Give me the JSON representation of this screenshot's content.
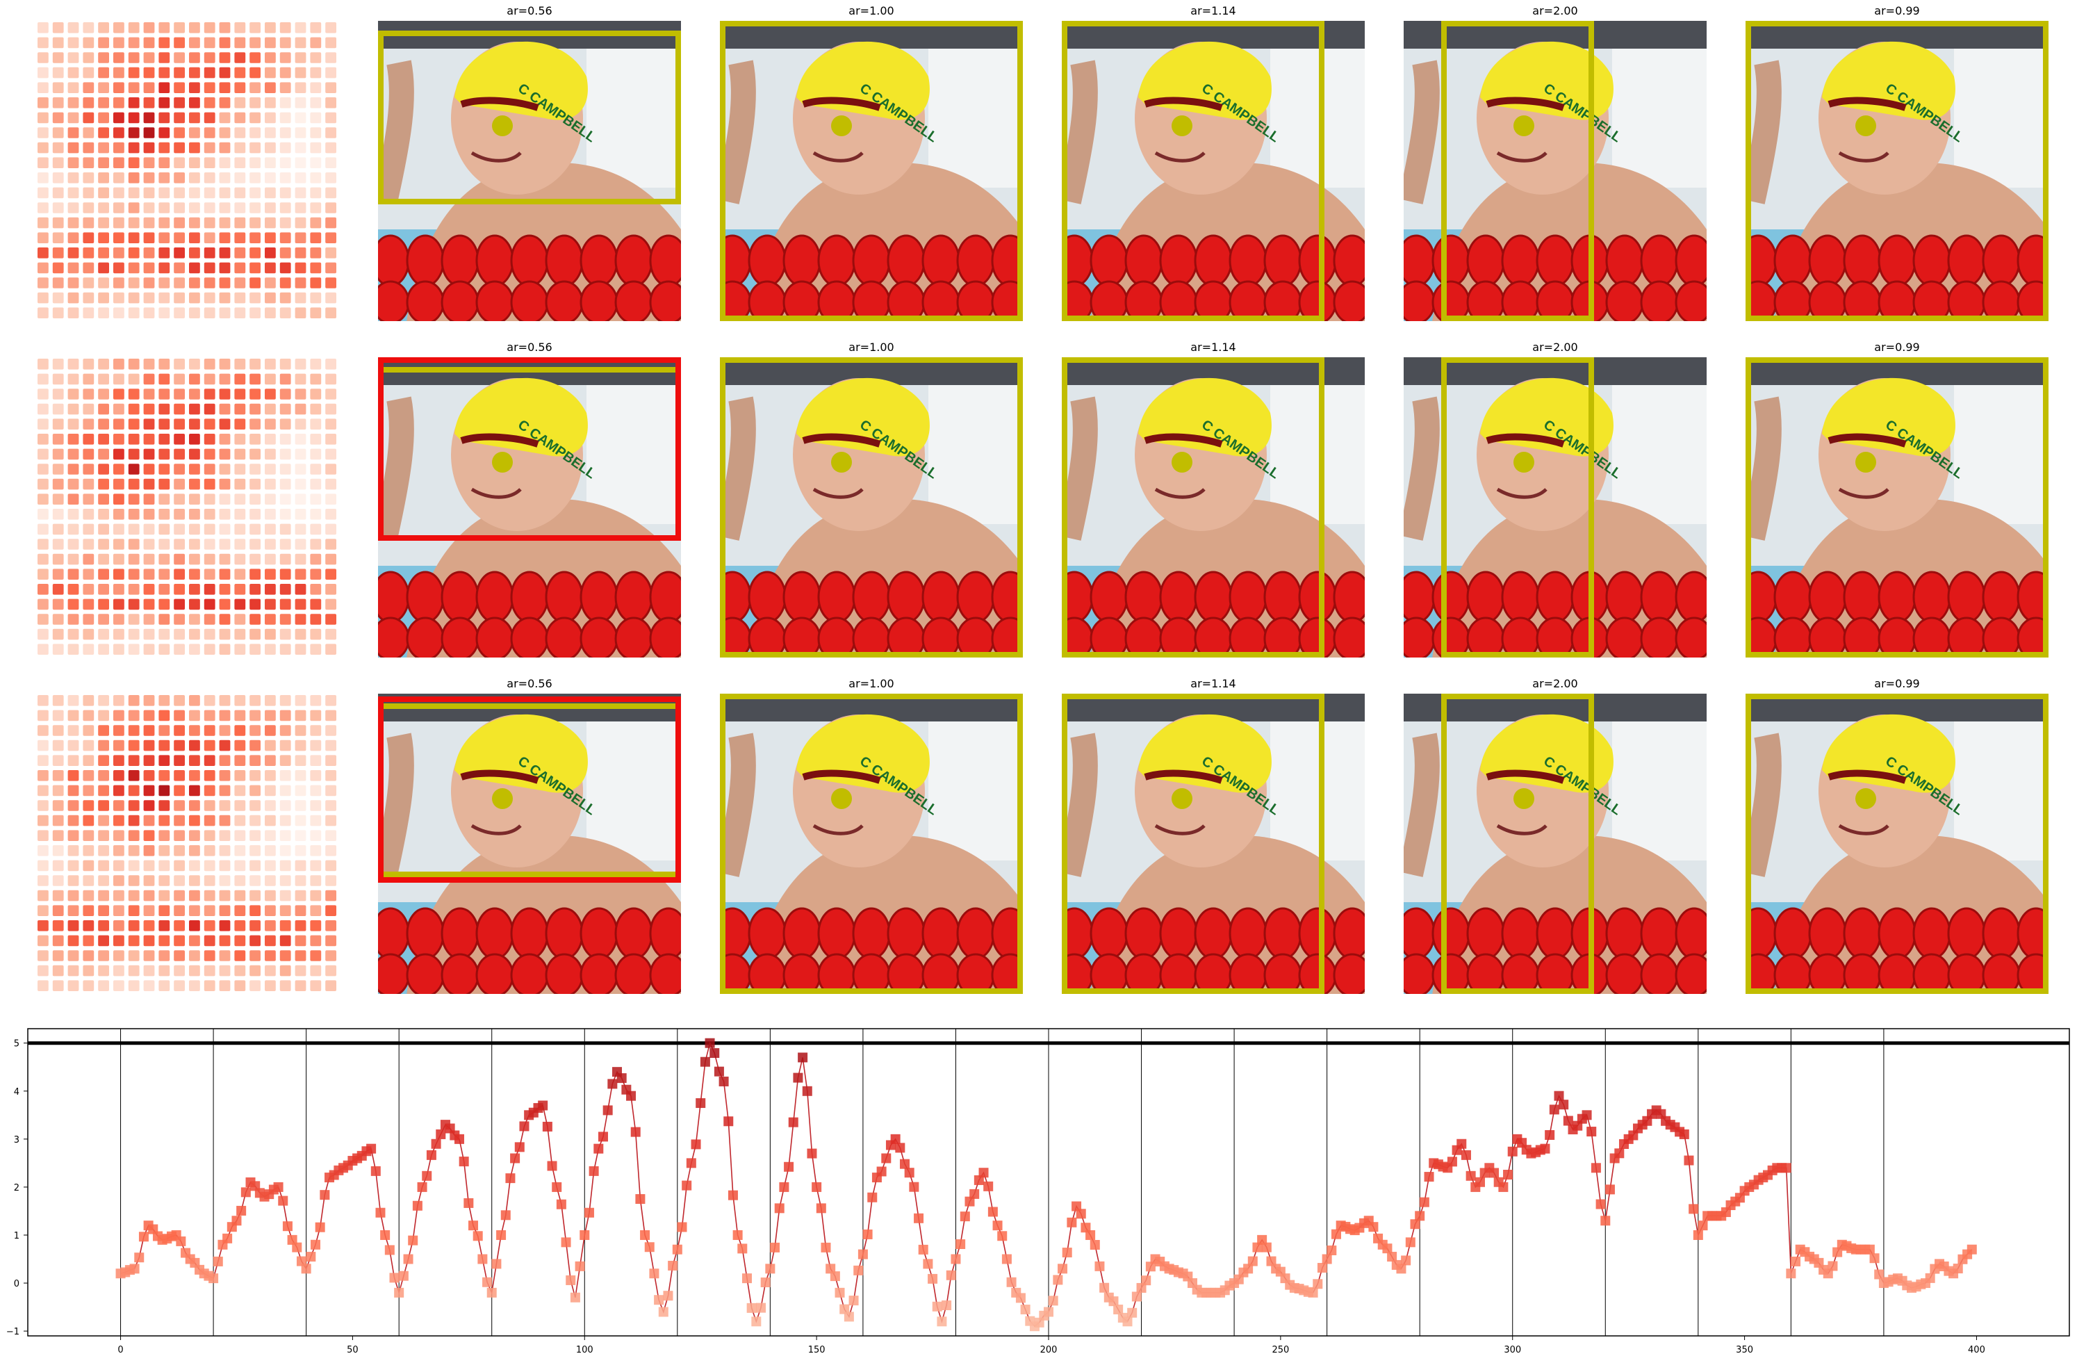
{
  "rows": [
    {
      "panels": [
        {
          "title": "ar=0.56",
          "photo_text": "C CAMPBELL"
        },
        {
          "title": "ar=1.00",
          "photo_text": "C CAMPBELL"
        },
        {
          "title": "ar=1.14",
          "photo_text": "C CAMPBELL"
        },
        {
          "title": "ar=2.00",
          "photo_text": "C CAMPBELL"
        },
        {
          "title": "ar=0.99",
          "photo_text": "C CAMPBELL"
        }
      ]
    },
    {
      "panels": [
        {
          "title": "ar=0.56",
          "photo_text": "C CAMPBELL"
        },
        {
          "title": "ar=1.00",
          "photo_text": "C CAMPBELL"
        },
        {
          "title": "ar=1.14",
          "photo_text": "C CAMPBELL"
        },
        {
          "title": "ar=2.00",
          "photo_text": "C CAMPBELL"
        },
        {
          "title": "ar=0.99",
          "photo_text": "C CAMPBELL"
        }
      ]
    },
    {
      "panels": [
        {
          "title": "ar=0.56",
          "photo_text": "C CAMPBELL"
        },
        {
          "title": "ar=1.00",
          "photo_text": "C CAMPBELL"
        },
        {
          "title": "ar=1.14",
          "photo_text": "C CAMPBELL"
        },
        {
          "title": "ar=2.00",
          "photo_text": "C CAMPBELL"
        },
        {
          "title": "ar=0.99",
          "photo_text": "C CAMPBELL"
        }
      ]
    }
  ],
  "colors": {
    "box_yellow": "#c1bd00",
    "box_red": "#ee0d0d",
    "line_red": "#c0272d",
    "cap_yellow": "#f3e629",
    "lane_red": "#e01818",
    "pool_blue": "#7fc3df"
  },
  "chart_data": {
    "type": "line",
    "xlim": [
      -20,
      420
    ],
    "ylim": [
      -1.1,
      5.3
    ],
    "xticks": [
      0,
      50,
      100,
      150,
      200,
      250,
      300,
      350,
      400
    ],
    "yticks": [
      -1,
      0,
      1,
      2,
      3,
      4,
      5
    ],
    "vlines": [
      0,
      20,
      40,
      60,
      80,
      100,
      120,
      140,
      160,
      180,
      200,
      220,
      240,
      260,
      280,
      300,
      320,
      340,
      360,
      380
    ],
    "hline": 5,
    "anchor_points": [
      [
        0,
        0.2
      ],
      [
        3,
        0.3
      ],
      [
        6,
        1.2
      ],
      [
        9,
        0.9
      ],
      [
        12,
        1.0
      ],
      [
        15,
        0.5
      ],
      [
        18,
        0.2
      ],
      [
        20,
        0.1
      ],
      [
        22,
        0.8
      ],
      [
        25,
        1.3
      ],
      [
        28,
        2.1
      ],
      [
        31,
        1.8
      ],
      [
        34,
        2.0
      ],
      [
        37,
        0.9
      ],
      [
        40,
        0.3
      ],
      [
        42,
        0.8
      ],
      [
        45,
        2.2
      ],
      [
        48,
        2.4
      ],
      [
        51,
        2.6
      ],
      [
        54,
        2.8
      ],
      [
        57,
        1.0
      ],
      [
        60,
        -0.2
      ],
      [
        62,
        0.5
      ],
      [
        65,
        2.0
      ],
      [
        68,
        2.9
      ],
      [
        70,
        3.3
      ],
      [
        73,
        3.0
      ],
      [
        76,
        1.2
      ],
      [
        80,
        -0.2
      ],
      [
        82,
        1.0
      ],
      [
        85,
        2.6
      ],
      [
        88,
        3.5
      ],
      [
        91,
        3.7
      ],
      [
        94,
        2.0
      ],
      [
        98,
        -0.3
      ],
      [
        100,
        1.0
      ],
      [
        103,
        2.8
      ],
      [
        107,
        4.4
      ],
      [
        110,
        3.9
      ],
      [
        113,
        1.0
      ],
      [
        117,
        -0.6
      ],
      [
        120,
        0.7
      ],
      [
        123,
        2.5
      ],
      [
        127,
        5.0
      ],
      [
        130,
        4.2
      ],
      [
        133,
        1.0
      ],
      [
        137,
        -0.8
      ],
      [
        140,
        0.3
      ],
      [
        143,
        2.0
      ],
      [
        147,
        4.7
      ],
      [
        150,
        2.0
      ],
      [
        153,
        0.3
      ],
      [
        157,
        -0.7
      ],
      [
        160,
        0.6
      ],
      [
        163,
        2.2
      ],
      [
        167,
        3.0
      ],
      [
        170,
        2.3
      ],
      [
        174,
        0.4
      ],
      [
        177,
        -0.8
      ],
      [
        180,
        0.5
      ],
      [
        183,
        1.7
      ],
      [
        186,
        2.3
      ],
      [
        189,
        1.2
      ],
      [
        193,
        -0.2
      ],
      [
        197,
        -0.9
      ],
      [
        200,
        -0.6
      ],
      [
        203,
        0.3
      ],
      [
        206,
        1.6
      ],
      [
        209,
        1.0
      ],
      [
        213,
        -0.3
      ],
      [
        217,
        -0.8
      ],
      [
        220,
        -0.1
      ],
      [
        223,
        0.5
      ],
      [
        226,
        0.3
      ],
      [
        229,
        0.2
      ],
      [
        233,
        -0.2
      ],
      [
        237,
        -0.2
      ],
      [
        240,
        0.0
      ],
      [
        243,
        0.3
      ],
      [
        246,
        0.9
      ],
      [
        249,
        0.3
      ],
      [
        253,
        -0.1
      ],
      [
        257,
        -0.2
      ],
      [
        260,
        0.5
      ],
      [
        263,
        1.2
      ],
      [
        266,
        1.1
      ],
      [
        269,
        1.3
      ],
      [
        272,
        0.8
      ],
      [
        276,
        0.3
      ],
      [
        280,
        1.4
      ],
      [
        283,
        2.5
      ],
      [
        286,
        2.4
      ],
      [
        289,
        2.9
      ],
      [
        292,
        2.0
      ],
      [
        295,
        2.4
      ],
      [
        298,
        2.0
      ],
      [
        301,
        3.0
      ],
      [
        304,
        2.7
      ],
      [
        307,
        2.8
      ],
      [
        310,
        3.9
      ],
      [
        313,
        3.2
      ],
      [
        316,
        3.5
      ],
      [
        320,
        1.3
      ],
      [
        322,
        2.6
      ],
      [
        325,
        3.0
      ],
      [
        328,
        3.3
      ],
      [
        331,
        3.6
      ],
      [
        334,
        3.3
      ],
      [
        337,
        3.1
      ],
      [
        340,
        1.0
      ],
      [
        342,
        1.4
      ],
      [
        345,
        1.4
      ],
      [
        348,
        1.7
      ],
      [
        351,
        2.0
      ],
      [
        354,
        2.2
      ],
      [
        357,
        2.4
      ],
      [
        359,
        2.4
      ],
      [
        360,
        0.2
      ],
      [
        362,
        0.7
      ],
      [
        365,
        0.5
      ],
      [
        368,
        0.2
      ],
      [
        371,
        0.8
      ],
      [
        374,
        0.7
      ],
      [
        377,
        0.7
      ],
      [
        380,
        0.0
      ],
      [
        383,
        0.1
      ],
      [
        386,
        -0.1
      ],
      [
        389,
        0.0
      ],
      [
        392,
        0.4
      ],
      [
        395,
        0.2
      ],
      [
        398,
        0.6
      ],
      [
        399,
        0.7
      ]
    ],
    "x_range": [
      0,
      399
    ],
    "heatmap_matrix": {
      "rows": 20,
      "cols": 20
    }
  }
}
